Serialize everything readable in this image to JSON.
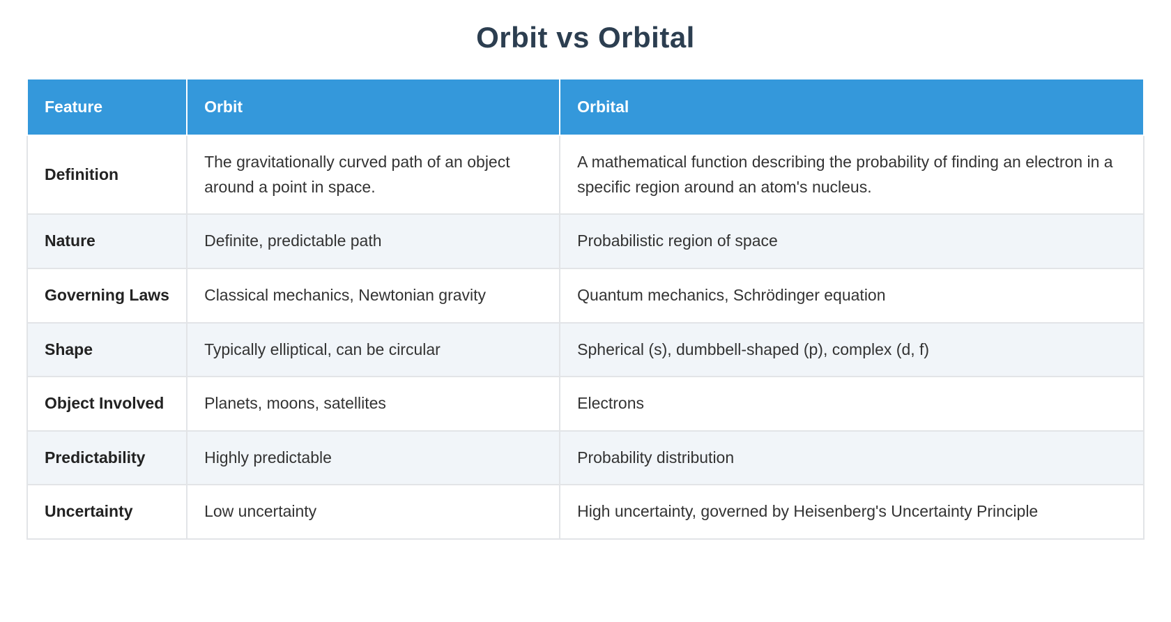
{
  "title": "Orbit vs Orbital",
  "colors": {
    "header_bg": "#3498db",
    "header_text": "#ffffff",
    "stripe_bg": "#f1f5f9",
    "title_color": "#2c3e50",
    "body_text": "#333333",
    "border": "#e2e4e7"
  },
  "table": {
    "columns": [
      {
        "key": "feature",
        "label": "Feature"
      },
      {
        "key": "orbit",
        "label": "Orbit"
      },
      {
        "key": "orbital",
        "label": "Orbital"
      }
    ],
    "rows": [
      {
        "feature": "Definition",
        "orbit": "The gravitationally curved path of an object around a point in space.",
        "orbital": "A mathematical function describing the probability of finding an electron in a specific region around an atom's nucleus."
      },
      {
        "feature": "Nature",
        "orbit": "Definite, predictable path",
        "orbital": "Probabilistic region of space"
      },
      {
        "feature": "Governing Laws",
        "orbit": "Classical mechanics, Newtonian gravity",
        "orbital": "Quantum mechanics, Schrödinger equation"
      },
      {
        "feature": "Shape",
        "orbit": "Typically elliptical, can be circular",
        "orbital": "Spherical (s), dumbbell-shaped (p), complex (d, f)"
      },
      {
        "feature": "Object Involved",
        "orbit": "Planets, moons, satellites",
        "orbital": "Electrons"
      },
      {
        "feature": "Predictability",
        "orbit": "Highly predictable",
        "orbital": "Probability distribution"
      },
      {
        "feature": "Uncertainty",
        "orbit": "Low uncertainty",
        "orbital": "High uncertainty, governed by Heisenberg's Uncertainty Principle"
      }
    ]
  }
}
